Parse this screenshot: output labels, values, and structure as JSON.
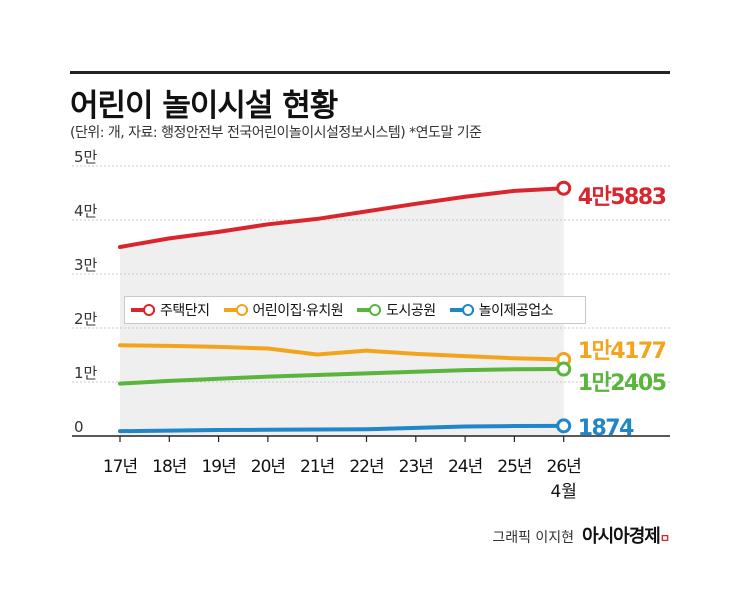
{
  "header": {
    "title": "어린이 놀이시설 현황",
    "subtitle": "(단위: 개, 자료: 행정안전부 전국어린이놀이시설정보시스템)  *연도말 기준"
  },
  "credit": {
    "text": "그래픽 이지현",
    "brand": "아시아경제",
    "brand_mark": "ㅁ"
  },
  "chart_data": {
    "type": "line",
    "title": "어린이 놀이시설 현황",
    "xlabel": "",
    "ylabel": "",
    "categories": [
      "17년",
      "18년",
      "19년",
      "20년",
      "21년",
      "22년",
      "23년",
      "24년",
      "25년",
      "26년"
    ],
    "last_category_note": "4월",
    "y_ticks": [
      {
        "value": 0,
        "label": "0"
      },
      {
        "value": 10000,
        "label": "1만"
      },
      {
        "value": 20000,
        "label": "2만"
      },
      {
        "value": 30000,
        "label": "3만"
      },
      {
        "value": 40000,
        "label": "4만"
      },
      {
        "value": 50000,
        "label": "5만"
      }
    ],
    "ylim": [
      0,
      50000
    ],
    "grid": true,
    "legend": "upper-middle",
    "series": [
      {
        "name": "주택단지",
        "color": "#d9262e",
        "values": [
          35000,
          36600,
          37800,
          39200,
          40200,
          41600,
          43000,
          44300,
          45400,
          45883
        ],
        "end_label": "4만5883"
      },
      {
        "name": "어린이집·유치원",
        "color": "#f2a51c",
        "values": [
          16800,
          16700,
          16500,
          16200,
          15100,
          15800,
          15200,
          14800,
          14400,
          14177
        ],
        "end_label": "1만4177"
      },
      {
        "name": "도시공원",
        "color": "#5ab53c",
        "values": [
          9700,
          10200,
          10600,
          11000,
          11300,
          11600,
          11900,
          12200,
          12350,
          12405
        ],
        "end_label": "1만2405"
      },
      {
        "name": "놀이제공업소",
        "color": "#1f86c8",
        "values": [
          900,
          1000,
          1100,
          1150,
          1200,
          1250,
          1500,
          1750,
          1850,
          1874
        ],
        "end_label": "1874"
      }
    ]
  }
}
